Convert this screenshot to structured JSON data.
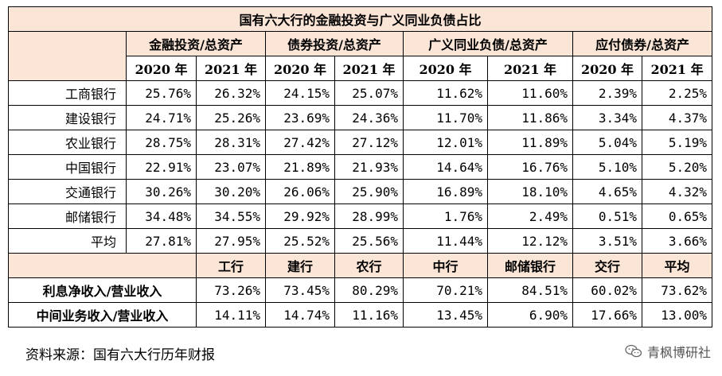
{
  "table": {
    "title": "国有六大行的金融投资与广义同业负债占比",
    "groups": [
      "金融投资/总资产",
      "债券投资/总资产",
      "广义同业负债/总资产",
      "应付债券/总资产"
    ],
    "years": [
      "2020 年",
      "2021 年",
      "2020 年",
      "2021 年",
      "2020 年",
      "2021 年",
      "2020 年",
      "2021 年"
    ],
    "rows": [
      {
        "bank": "工商银行",
        "values": [
          "25.76%",
          "26.32%",
          "24.15%",
          "25.07%",
          "11.62%",
          "11.60%",
          "2.39%",
          "2.25%"
        ]
      },
      {
        "bank": "建设银行",
        "values": [
          "24.71%",
          "25.26%",
          "23.69%",
          "24.36%",
          "11.70%",
          "11.86%",
          "3.34%",
          "4.37%"
        ]
      },
      {
        "bank": "农业银行",
        "values": [
          "28.75%",
          "28.31%",
          "27.42%",
          "27.12%",
          "12.01%",
          "11.89%",
          "5.04%",
          "5.19%"
        ]
      },
      {
        "bank": "中国银行",
        "values": [
          "22.91%",
          "23.07%",
          "21.89%",
          "21.93%",
          "14.64%",
          "16.76%",
          "5.10%",
          "5.20%"
        ]
      },
      {
        "bank": "交通银行",
        "values": [
          "30.26%",
          "30.20%",
          "26.06%",
          "25.90%",
          "16.89%",
          "18.10%",
          "4.65%",
          "4.32%"
        ]
      },
      {
        "bank": "邮储银行",
        "values": [
          "34.48%",
          "34.55%",
          "29.92%",
          "28.99%",
          "1.76%",
          "2.49%",
          "0.51%",
          "0.65%"
        ]
      },
      {
        "bank": "平均",
        "values": [
          "27.81%",
          "27.95%",
          "25.52%",
          "25.56%",
          "11.44%",
          "12.12%",
          "3.51%",
          "3.66%"
        ]
      }
    ]
  },
  "income": {
    "headers": [
      "工行",
      "建行",
      "农行",
      "中行",
      "邮储银行",
      "交行",
      "平均"
    ],
    "rows": [
      {
        "label": "利息净收入/营业收入",
        "values": [
          "73.26%",
          "73.45%",
          "80.29%",
          "70.21%",
          "84.51%",
          "60.02%",
          "73.62%"
        ]
      },
      {
        "label": "中间业务收入/营业收入",
        "values": [
          "14.11%",
          "14.74%",
          "11.16%",
          "13.45%",
          "6.90%",
          "17.66%",
          "13.00%"
        ]
      }
    ]
  },
  "source": "资料来源：国有六大行历年财报",
  "watermark": {
    "icon": "wechat-icon",
    "text": "青枫博研社"
  }
}
